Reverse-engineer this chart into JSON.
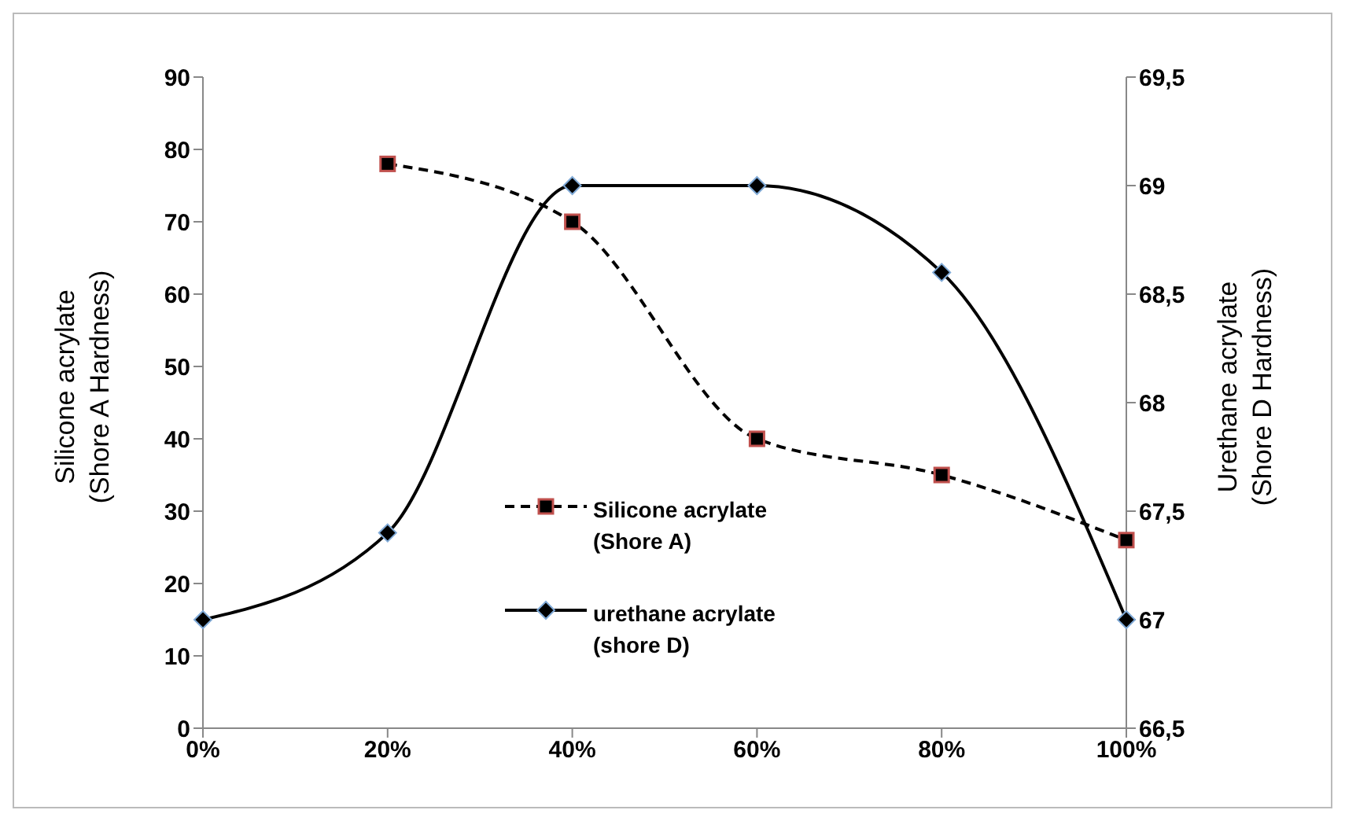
{
  "chart_data": {
    "type": "line",
    "categories": [
      "0%",
      "20%",
      "40%",
      "60%",
      "80%",
      "100%"
    ],
    "ylabel": "Silicone acrylate (Shore A Hardness)",
    "y2label": "Urethane acrylate (Shore D Hardness)",
    "ylim": [
      0,
      90
    ],
    "yticks": [
      0,
      10,
      20,
      30,
      40,
      50,
      60,
      70,
      80,
      90
    ],
    "y2lim": [
      66.5,
      69.5
    ],
    "y2ticks": [
      {
        "value": 66.5,
        "label": "66,5"
      },
      {
        "value": 67,
        "label": "67"
      },
      {
        "value": 67.5,
        "label": "67,5"
      },
      {
        "value": 68,
        "label": "68"
      },
      {
        "value": 68.5,
        "label": "68,5"
      },
      {
        "value": 69,
        "label": "69"
      },
      {
        "value": 69.5,
        "label": "69,5"
      }
    ],
    "series": [
      {
        "name": "Silicone acrylate (Shore A)",
        "color": "#000000",
        "values": [
          null,
          78,
          70,
          40,
          35,
          26
        ],
        "marker": "square",
        "line_style": "dashed"
      },
      {
        "name": "urethane acrylate (shore D)",
        "color": "#000000",
        "values": [
          67,
          67.4,
          69,
          69,
          68.6,
          67
        ],
        "marker": "diamond",
        "line_style": "solid",
        "axis": "y2"
      }
    ],
    "legend": "bottom center",
    "grid": false
  }
}
